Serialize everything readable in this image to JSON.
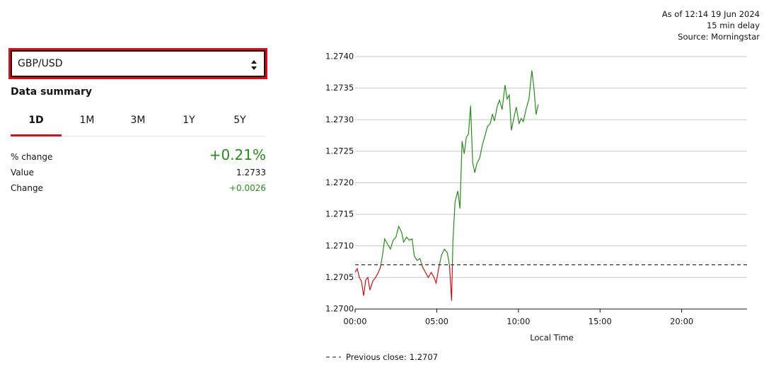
{
  "header": {
    "as_of": "As of 12:14 19 Jun 2024",
    "delay": "15 min delay",
    "source": "Source: Morningstar"
  },
  "selector": {
    "value": "GBP/USD"
  },
  "summary": {
    "title": "Data summary",
    "tabs": [
      "1D",
      "1M",
      "3M",
      "1Y",
      "5Y"
    ],
    "active_tab": "1D",
    "rows": [
      {
        "label": "% change",
        "value": "+0.21%"
      },
      {
        "label": "Value",
        "value": "1.2733"
      },
      {
        "label": "Change",
        "value": "+0.0026"
      }
    ]
  },
  "chart_data": {
    "type": "line",
    "x_label": "Local Time",
    "x": [
      0,
      0.13,
      0.26,
      0.39,
      0.52,
      0.65,
      0.78,
      0.91,
      1.08,
      1.25,
      1.42,
      1.55,
      1.68,
      1.81,
      1.98,
      2.16,
      2.33,
      2.5,
      2.67,
      2.84,
      2.97,
      3.15,
      3.32,
      3.49,
      3.62,
      3.79,
      3.97,
      4.14,
      4.31,
      4.48,
      4.66,
      4.83,
      4.96,
      5.13,
      5.3,
      5.47,
      5.65,
      5.78,
      5.91,
      5.99,
      6.12,
      6.29,
      6.42,
      6.55,
      6.68,
      6.81,
      6.94,
      7.07,
      7.2,
      7.33,
      7.46,
      7.63,
      7.8,
      7.97,
      8.1,
      8.28,
      8.41,
      8.53,
      8.71,
      8.84,
      9.0,
      9.18,
      9.31,
      9.44,
      9.57,
      9.74,
      9.87,
      10.04,
      10.17,
      10.3,
      10.47,
      10.65,
      10.82,
      10.95,
      11.08,
      11.21
    ],
    "values": [
      1.27058,
      1.27064,
      1.2705,
      1.27044,
      1.27021,
      1.27046,
      1.2705,
      1.2703,
      1.27044,
      1.2705,
      1.27058,
      1.27066,
      1.27086,
      1.27111,
      1.27103,
      1.27095,
      1.27109,
      1.27114,
      1.27131,
      1.27122,
      1.27106,
      1.27114,
      1.27109,
      1.27111,
      1.27084,
      1.27077,
      1.2708,
      1.27066,
      1.27058,
      1.2705,
      1.27058,
      1.2705,
      1.27041,
      1.27066,
      1.27086,
      1.27095,
      1.27089,
      1.27069,
      1.27013,
      1.27109,
      1.2717,
      1.27187,
      1.27159,
      1.27266,
      1.27246,
      1.27272,
      1.27277,
      1.27322,
      1.27232,
      1.27216,
      1.27231,
      1.27239,
      1.27261,
      1.27276,
      1.27289,
      1.27294,
      1.27309,
      1.27298,
      1.27322,
      1.27331,
      1.27316,
      1.27355,
      1.27333,
      1.27339,
      1.27283,
      1.27305,
      1.2732,
      1.27294,
      1.27302,
      1.27297,
      1.27317,
      1.27333,
      1.27378,
      1.2735,
      1.27308,
      1.27324
    ],
    "up_color": "#2a8a1f",
    "down_color": "#c0141b",
    "previous_close": 1.2707,
    "previous_close_label": "Previous close:",
    "xlim": [
      0,
      24
    ],
    "xticks": [
      {
        "value": 0,
        "label": "00:00"
      },
      {
        "value": 5,
        "label": "05:00"
      },
      {
        "value": 10,
        "label": "10:00"
      },
      {
        "value": 15,
        "label": "15:00"
      },
      {
        "value": 20,
        "label": "20:00"
      }
    ],
    "ylim": [
      1.27,
      1.274
    ],
    "yticks": [
      {
        "value": 1.27,
        "label": "1.2700"
      },
      {
        "value": 1.2705,
        "label": "1.2705"
      },
      {
        "value": 1.271,
        "label": "1.2710"
      },
      {
        "value": 1.2715,
        "label": "1.2715"
      },
      {
        "value": 1.272,
        "label": "1.2720"
      },
      {
        "value": 1.2725,
        "label": "1.2725"
      },
      {
        "value": 1.273,
        "label": "1.2730"
      },
      {
        "value": 1.2735,
        "label": "1.2735"
      },
      {
        "value": 1.274,
        "label": "1.2740"
      }
    ],
    "grid": true
  }
}
